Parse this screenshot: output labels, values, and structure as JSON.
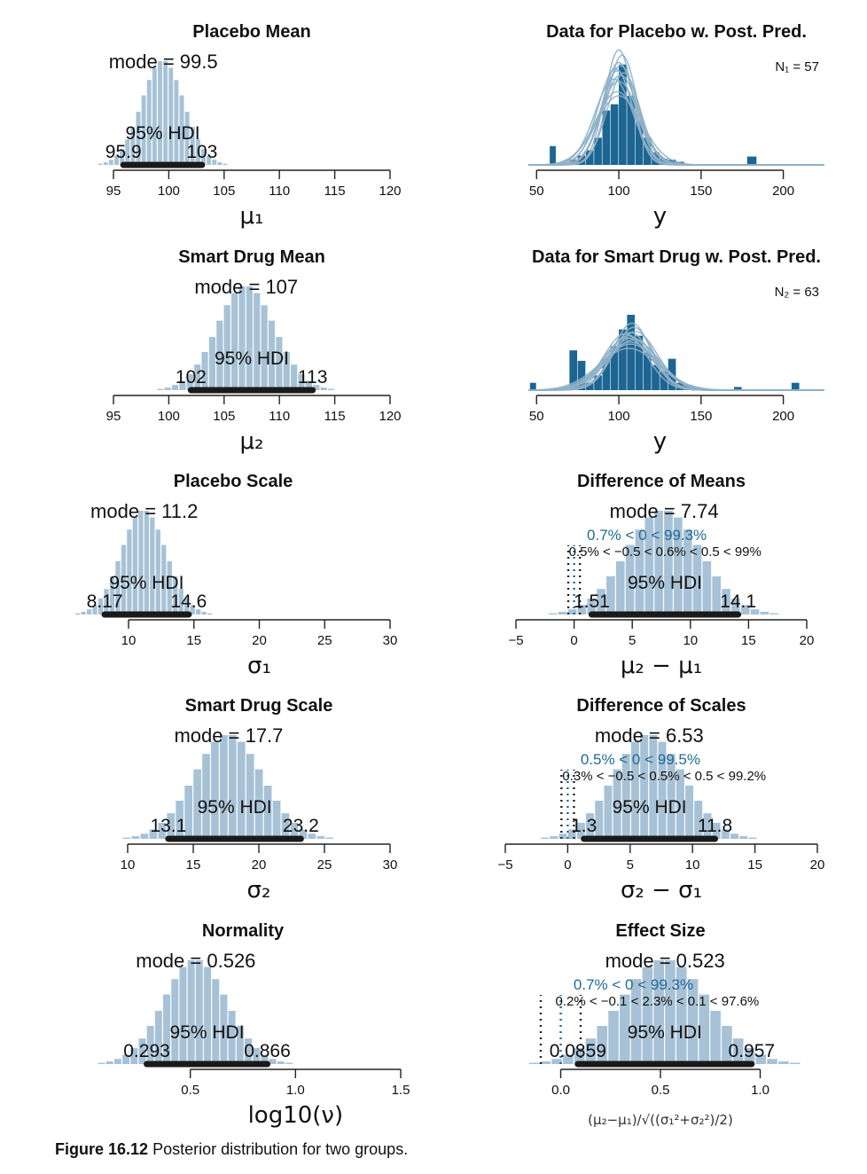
{
  "caption": {
    "label": "Figure 16.12",
    "text": "Posterior distribution for two groups."
  },
  "colors": {
    "hist": "#a7c2d6",
    "data_bar": "#1d6592",
    "curve": "#8eb0c8",
    "hdi": "#1a1a1a",
    "cmp": "#1f6a96"
  },
  "chart_data": [
    {
      "type": "bar",
      "title": "Placebo Mean",
      "xlabel": "μ₁",
      "xlim": [
        95,
        120
      ],
      "xticks": [
        "95",
        "100",
        "105",
        "110",
        "115",
        "120"
      ],
      "mode": 99.5,
      "sd": 1.9,
      "mode_text": "mode = 99.5",
      "hdi": [
        95.9,
        103
      ],
      "hdi_text": "95% HDI",
      "hdi_low_text": "95.9",
      "hdi_high_text": "103"
    },
    {
      "type": "bar",
      "title": "Data for Placebo w. Post. Pred.",
      "xlabel": "y",
      "xlim": [
        45,
        225
      ],
      "xticks": [
        "50",
        "100",
        "150",
        "200"
      ],
      "n_text": "N₁ = 57",
      "bins": [
        [
          58,
          62,
          0.18
        ],
        [
          62,
          70,
          0.0
        ],
        [
          70,
          75,
          0.05
        ],
        [
          75,
          80,
          0.09
        ],
        [
          80,
          85,
          0.14
        ],
        [
          85,
          90,
          0.26
        ],
        [
          90,
          95,
          0.52
        ],
        [
          95,
          100,
          0.58
        ],
        [
          100,
          105,
          0.96
        ],
        [
          105,
          110,
          0.66
        ],
        [
          110,
          115,
          0.42
        ],
        [
          115,
          120,
          0.26
        ],
        [
          120,
          125,
          0.12
        ],
        [
          125,
          130,
          0.06
        ],
        [
          130,
          135,
          0.05
        ],
        [
          135,
          140,
          0.03
        ],
        [
          178,
          184,
          0.08
        ]
      ],
      "curves": [
        [
          99,
          9.5,
          0.9
        ],
        [
          100,
          10,
          0.98
        ],
        [
          101,
          11,
          0.86
        ],
        [
          98,
          10.5,
          0.92
        ],
        [
          100,
          12,
          0.8
        ],
        [
          102,
          9,
          1.05
        ],
        [
          99,
          13,
          0.7
        ],
        [
          100,
          8.5,
          1.1
        ],
        [
          101,
          10.5,
          0.95
        ],
        [
          97,
          11.5,
          0.82
        ],
        [
          100,
          14,
          0.66
        ],
        [
          103,
          10,
          0.88
        ]
      ]
    },
    {
      "type": "bar",
      "title": "Smart Drug Mean",
      "xlabel": "μ₂",
      "xlim": [
        95,
        120
      ],
      "xticks": [
        "95",
        "100",
        "105",
        "110",
        "115",
        "120"
      ],
      "mode": 107,
      "sd": 2.6,
      "mode_text": "mode = 107",
      "hdi": [
        102,
        113
      ],
      "hdi_text": "95% HDI",
      "hdi_low_text": "102",
      "hdi_high_text": "113"
    },
    {
      "type": "bar",
      "title": "Data for Smart Drug w. Post. Pred.",
      "xlabel": "y",
      "xlim": [
        45,
        225
      ],
      "xticks": [
        "50",
        "100",
        "150",
        "200"
      ],
      "n_text": "N₂ = 63",
      "bins": [
        [
          46,
          50,
          0.07
        ],
        [
          70,
          75,
          0.38
        ],
        [
          75,
          80,
          0.28
        ],
        [
          80,
          85,
          0.07
        ],
        [
          85,
          90,
          0.14
        ],
        [
          90,
          95,
          0.3
        ],
        [
          95,
          100,
          0.42
        ],
        [
          100,
          105,
          0.58
        ],
        [
          105,
          110,
          0.72
        ],
        [
          110,
          115,
          0.52
        ],
        [
          115,
          120,
          0.36
        ],
        [
          120,
          125,
          0.24
        ],
        [
          125,
          130,
          0.18
        ],
        [
          130,
          135,
          0.3
        ],
        [
          135,
          140,
          0.07
        ],
        [
          140,
          145,
          0.05
        ],
        [
          145,
          150,
          0.03
        ],
        [
          170,
          175,
          0.03
        ],
        [
          205,
          210,
          0.07
        ]
      ],
      "curves": [
        [
          107,
          13,
          0.55
        ],
        [
          108,
          15,
          0.5
        ],
        [
          106,
          14,
          0.52
        ],
        [
          109,
          12,
          0.6
        ],
        [
          107,
          17,
          0.44
        ],
        [
          105,
          14.5,
          0.5
        ],
        [
          110,
          13.5,
          0.56
        ],
        [
          107,
          16,
          0.46
        ],
        [
          108,
          11.5,
          0.64
        ],
        [
          106,
          18,
          0.4
        ],
        [
          109,
          15.5,
          0.48
        ],
        [
          104,
          13,
          0.54
        ]
      ]
    },
    {
      "type": "bar",
      "title": "Placebo Scale",
      "xlabel": "σ₁",
      "xlim": [
        6,
        30
      ],
      "xticks": [
        "10",
        "15",
        "20",
        "25",
        "30"
      ],
      "mode": 11.2,
      "sd": 1.7,
      "mode_text": "mode = 11.2",
      "hdi": [
        8.17,
        14.6
      ],
      "hdi_text": "95% HDI",
      "hdi_low_text": "8.17",
      "hdi_high_text": "14.6"
    },
    {
      "type": "bar",
      "title": "Difference of Means",
      "xlabel": "μ₂ − μ₁",
      "xlim": [
        -5,
        20
      ],
      "xticks": [
        "−5",
        "0",
        "5",
        "10",
        "15",
        "20"
      ],
      "mode": 7.74,
      "sd": 3.2,
      "mode_text": "mode = 7.74",
      "hdi": [
        1.51,
        14.1
      ],
      "hdi_text": "95% HDI",
      "hdi_low_text": "1.51",
      "hdi_high_text": "14.1",
      "comp_text": "0.7% < 0 < 99.3%",
      "rope_text": "0.5% < −0.5 < 0.6% < 0.5 < 99%",
      "rope": [
        -0.5,
        0.5
      ]
    },
    {
      "type": "bar",
      "title": "Smart Drug Scale",
      "xlabel": "σ₂",
      "xlim": [
        10,
        30
      ],
      "xticks": [
        "10",
        "15",
        "20",
        "25",
        "30"
      ],
      "mode": 17.7,
      "sd": 2.6,
      "mode_text": "mode = 17.7",
      "hdi": [
        13.1,
        23.2
      ],
      "hdi_text": "95% HDI",
      "hdi_low_text": "13.1",
      "hdi_high_text": "23.2"
    },
    {
      "type": "bar",
      "title": "Difference of Scales",
      "xlabel": "σ₂ − σ₁",
      "xlim": [
        -5,
        20
      ],
      "xticks": [
        "−5",
        "0",
        "5",
        "10",
        "15",
        "20"
      ],
      "mode": 6.53,
      "sd": 2.8,
      "mode_text": "mode = 6.53",
      "hdi": [
        1.3,
        11.8
      ],
      "hdi_text": "95% HDI",
      "hdi_low_text": "1.3",
      "hdi_high_text": "11.8",
      "comp_text": "0.5% < 0 < 99.5%",
      "rope_text": "0.3% < −0.5 < 0.5% < 0.5 < 99.2%",
      "rope": [
        -0.5,
        0.5
      ]
    },
    {
      "type": "bar",
      "title": "Normality",
      "xlabel": "log10(ν)",
      "xlim": [
        0.0,
        1.5
      ],
      "xticks": [
        "0.5",
        "1.0",
        "1.5"
      ],
      "xtick_values": [
        0.5,
        1.0,
        1.5
      ],
      "mode": 0.526,
      "sd": 0.15,
      "mode_text": "mode = 0.526",
      "hdi": [
        0.293,
        0.866
      ],
      "hdi_text": "95% HDI",
      "hdi_low_text": "0.293",
      "hdi_high_text": "0.866"
    },
    {
      "type": "bar",
      "title": "Effect Size",
      "xlabel": "(μ₂−μ₁)/√((σ₁²+σ₂²)/2)",
      "xlim": [
        -0.1,
        1.1
      ],
      "xticks": [
        "0.0",
        "0.5",
        "1.0"
      ],
      "xtick_values": [
        0.0,
        0.5,
        1.0
      ],
      "mode": 0.523,
      "sd": 0.22,
      "mode_text": "mode = 0.523",
      "hdi": [
        0.0859,
        0.957
      ],
      "hdi_text": "95% HDI",
      "hdi_low_text": "0.0859",
      "hdi_high_text": "0.957",
      "comp_text": "0.7% < 0 < 99.3%",
      "rope_text": "0.2% < −0.1 < 2.3% < 0.1 < 97.6%",
      "rope": [
        -0.1,
        0.1
      ]
    }
  ]
}
